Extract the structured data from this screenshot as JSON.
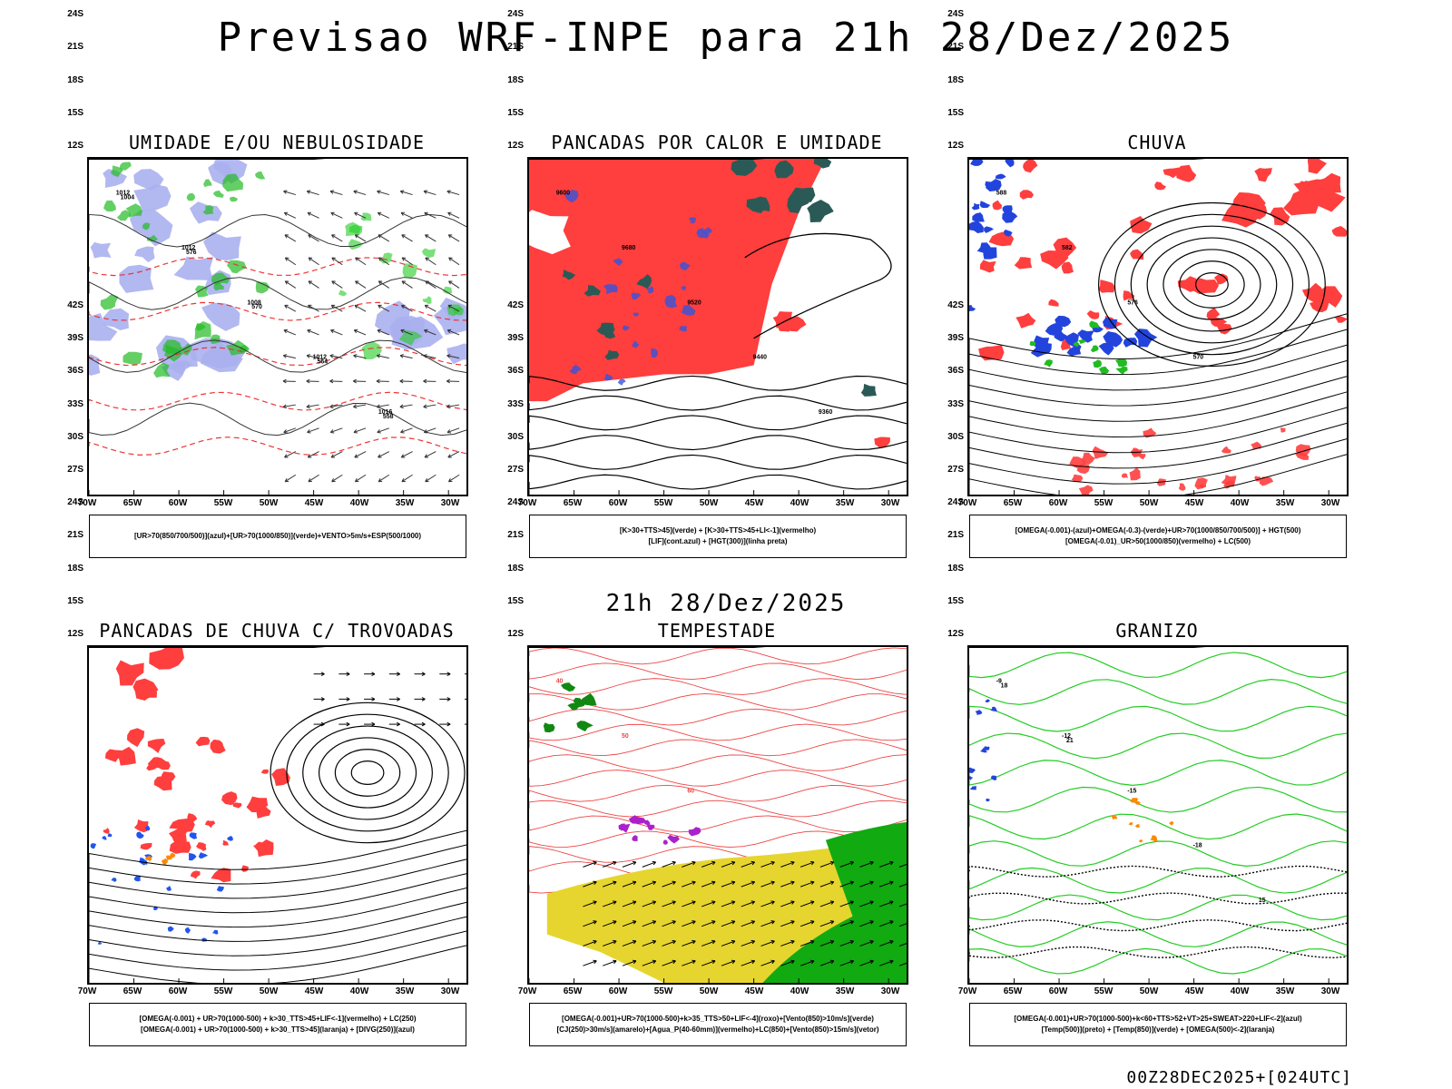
{
  "title": "Previsao WRF-INPE  para 21h 28/Dez/2025",
  "subtitle": "21h 28/Dez/2025",
  "run_stamp": "00Z28DEC2025+[024UTC]",
  "axes": {
    "lat_labels": [
      "12S",
      "15S",
      "18S",
      "21S",
      "24S",
      "27S",
      "30S",
      "33S",
      "36S",
      "39S",
      "42S"
    ],
    "lon_labels": [
      "70W",
      "65W",
      "60W",
      "55W",
      "50W",
      "45W",
      "40W",
      "35W",
      "30W"
    ]
  },
  "panels": [
    {
      "title": "UMIDADE E/OU NEBULOSIDADE",
      "legend": [
        "[UR>70(850/700/500)](azul)+[UR>70(1000/850)](verde)+VENTO>5m/s+ESP(500/1000)"
      ],
      "contour_labels": [
        "1012",
        "1012",
        "1008",
        "1012",
        "1016",
        "1004",
        "576",
        "570",
        "564",
        "558"
      ]
    },
    {
      "title": "PANCADAS POR CALOR E UMIDADE",
      "legend": [
        "[K>30+TTS>45](verde) + [K>30+TTS>45+LI<-1](vermelho)",
        "[LIF](cont.azul) + [HGT(300)](linha preta)"
      ],
      "contour_labels": [
        "9600",
        "9680",
        "9520",
        "9440",
        "9360"
      ]
    },
    {
      "title": "CHUVA",
      "legend": [
        "[OMEGA(-0.001)-(azul)+OMEGA(-0.3)-(verde)+UR>70(1000/850/700/500)] + HGT(500)",
        "[OMEGA(-0.01)_UR>50(1000/850)(vermelho) + LC(500)"
      ],
      "contour_labels": [
        "588",
        "582",
        "576",
        "570"
      ]
    },
    {
      "title": "PANCADAS DE CHUVA C/ TROVOADAS",
      "legend": [
        "[OMEGA(-0.001) + UR>70(1000-500) + k>30_TTS>45+LIF<-1](vermelho) + LC(250)",
        "[OMEGA(-0.001) + UR>70(1000-500) + k>30_TTS>45](laranja) + [DIVG(250)](azul)"
      ],
      "contour_labels": []
    },
    {
      "title": "TEMPESTADE",
      "legend": [
        "[OMEGA(-0.001)+UR>70(1000-500)+k>35_TTS>50+LIF<-4](roxo)+[Vento(850)>10m/s](verde)",
        "[CJ(250)>30m/s](amarelo)+[Agua_P(40-60mm)](vermelho)+LC(850)+[Vento(850)>15m/s](vetor)"
      ],
      "contour_labels": [
        "40",
        "50",
        "60"
      ]
    },
    {
      "title": "GRANIZO",
      "legend": [
        "[OMEGA(-0.001)+UR>70(1000-500)+k<60+TTS>52+VT>25+SWEAT>220+LIF<-2](azul)",
        "[Temp(500)](preto) + [Temp(850)](verde) + [OMEGA(500)<-2](laranja)"
      ],
      "contour_labels": [
        "-9",
        "-12",
        "-15",
        "-18",
        "15",
        "18",
        "21"
      ]
    }
  ]
}
